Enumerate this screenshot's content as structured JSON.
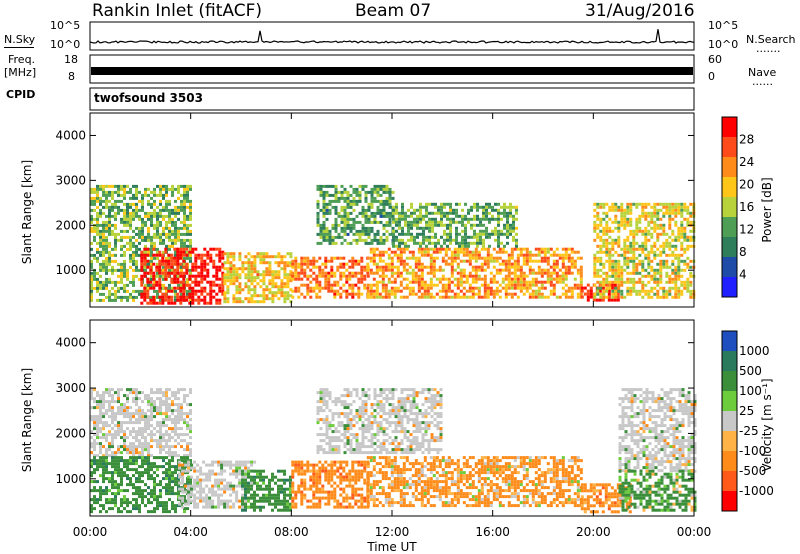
{
  "header": {
    "station": "Rankin Inlet (fitACF)",
    "beam": "Beam 07",
    "date": "31/Aug/2016"
  },
  "left_labels": {
    "nsky": "N.Sky",
    "freq_line1": "Freq.",
    "freq_line2": "[MHz]",
    "cpid": "CPID"
  },
  "right_labels": {
    "nsearch": "N.Search",
    "nave": "Nave",
    "dots": "......."
  },
  "strip_ticks": {
    "noise_top": "10^5",
    "noise_bottom": "10^0",
    "noise_right_top": "10^5",
    "noise_right_bottom": "10^0",
    "freq_top": "18",
    "freq_bottom": "8",
    "nave_top": "60",
    "nave_bottom": "0"
  },
  "cpid_text": "twofsound 3503",
  "colors": {
    "power_scale": [
      "#1f1fff",
      "#1e4aa8",
      "#2e7d5b",
      "#4f9e55",
      "#b7d23a",
      "#ffc61a",
      "#ff8c1a",
      "#ff4a1a",
      "#ff0000"
    ],
    "velocity_scale": [
      "#1f4fbf",
      "#2a7a5e",
      "#3b8f3b",
      "#6ccc3c",
      "#c8c8c8",
      "#ffb347",
      "#ff8c1a",
      "#ff5a1a",
      "#ff0000"
    ],
    "ground_scatter": "#c8c8c8"
  },
  "chart_data": [
    {
      "type": "heatmap",
      "panel": "power",
      "ylabel": "Slant Range [km]",
      "xlabel": "",
      "x_range": [
        "00:00",
        "00:00"
      ],
      "ylim": [
        180,
        4500
      ],
      "y_ticks": [
        1000,
        2000,
        3000,
        4000
      ],
      "colorbar": {
        "label": "Power [dB]",
        "range": [
          0,
          32
        ],
        "ticks": [
          4,
          8,
          12,
          16,
          20,
          24,
          28
        ]
      },
      "regions": [
        {
          "t": [
            0.0,
            4.0
          ],
          "range_km": [
            300,
            2900
          ],
          "power_db": 14
        },
        {
          "t": [
            2.0,
            5.3
          ],
          "range_km": [
            250,
            1500
          ],
          "power_db": 30
        },
        {
          "t": [
            5.3,
            8.0
          ],
          "range_km": [
            300,
            1400
          ],
          "power_db": 20
        },
        {
          "t": [
            8.0,
            11.0
          ],
          "range_km": [
            400,
            1300
          ],
          "power_db": 24
        },
        {
          "t": [
            9.0,
            12.0
          ],
          "range_km": [
            1600,
            2900
          ],
          "power_db": 12
        },
        {
          "t": [
            11.0,
            19.5
          ],
          "range_km": [
            400,
            1500
          ],
          "power_db": 22
        },
        {
          "t": [
            12.0,
            17.0
          ],
          "range_km": [
            1500,
            2500
          ],
          "power_db": 13
        },
        {
          "t": [
            19.5,
            21.0
          ],
          "range_km": [
            350,
            700
          ],
          "power_db": 30
        },
        {
          "t": [
            20.0,
            24.0
          ],
          "range_km": [
            400,
            2500
          ],
          "power_db": 18
        }
      ]
    },
    {
      "type": "heatmap",
      "panel": "velocity",
      "ylabel": "Slant Range [km]",
      "xlabel": "Time UT",
      "x_range": [
        "00:00",
        "00:00"
      ],
      "x_ticks": [
        "00:00",
        "04:00",
        "08:00",
        "12:00",
        "16:00",
        "20:00",
        "00:00"
      ],
      "ylim": [
        180,
        4500
      ],
      "y_ticks": [
        1000,
        2000,
        3000,
        4000
      ],
      "colorbar": {
        "label": "Velocity [m s-1]",
        "tick_labels": [
          "1000",
          "500",
          "100",
          "25",
          "-25",
          "-100",
          "-500",
          "-1000"
        ]
      },
      "regions": [
        {
          "t": [
            0.0,
            4.0
          ],
          "range_km": [
            1500,
            3000
          ],
          "velocity_ms": 0
        },
        {
          "t": [
            0.0,
            4.0
          ],
          "range_km": [
            300,
            1500
          ],
          "velocity_ms": 300
        },
        {
          "t": [
            3.5,
            6.5
          ],
          "range_km": [
            350,
            1400
          ],
          "velocity_ms": 0
        },
        {
          "t": [
            6.0,
            8.0
          ],
          "range_km": [
            300,
            1200
          ],
          "velocity_ms": 300
        },
        {
          "t": [
            8.0,
            11.0
          ],
          "range_km": [
            400,
            1400
          ],
          "velocity_ms": -300
        },
        {
          "t": [
            9.0,
            14.0
          ],
          "range_km": [
            1600,
            3000
          ],
          "velocity_ms": 0
        },
        {
          "t": [
            11.0,
            19.5
          ],
          "range_km": [
            400,
            1500
          ],
          "velocity_ms": -200
        },
        {
          "t": [
            19.5,
            21.5
          ],
          "range_km": [
            250,
            900
          ],
          "velocity_ms": -300
        },
        {
          "t": [
            21.0,
            24.0
          ],
          "range_km": [
            1200,
            3000
          ],
          "velocity_ms": 0
        },
        {
          "t": [
            21.0,
            24.0
          ],
          "range_km": [
            300,
            1200
          ],
          "velocity_ms": 200
        }
      ]
    }
  ],
  "axis_labels": {
    "power_ylabel": "Slant Range [km]",
    "velocity_ylabel": "Slant Range [km]",
    "xlabel": "Time UT",
    "power_cbar": "Power [dB]",
    "velocity_cbar": "Velocity [m s⁻¹]"
  }
}
